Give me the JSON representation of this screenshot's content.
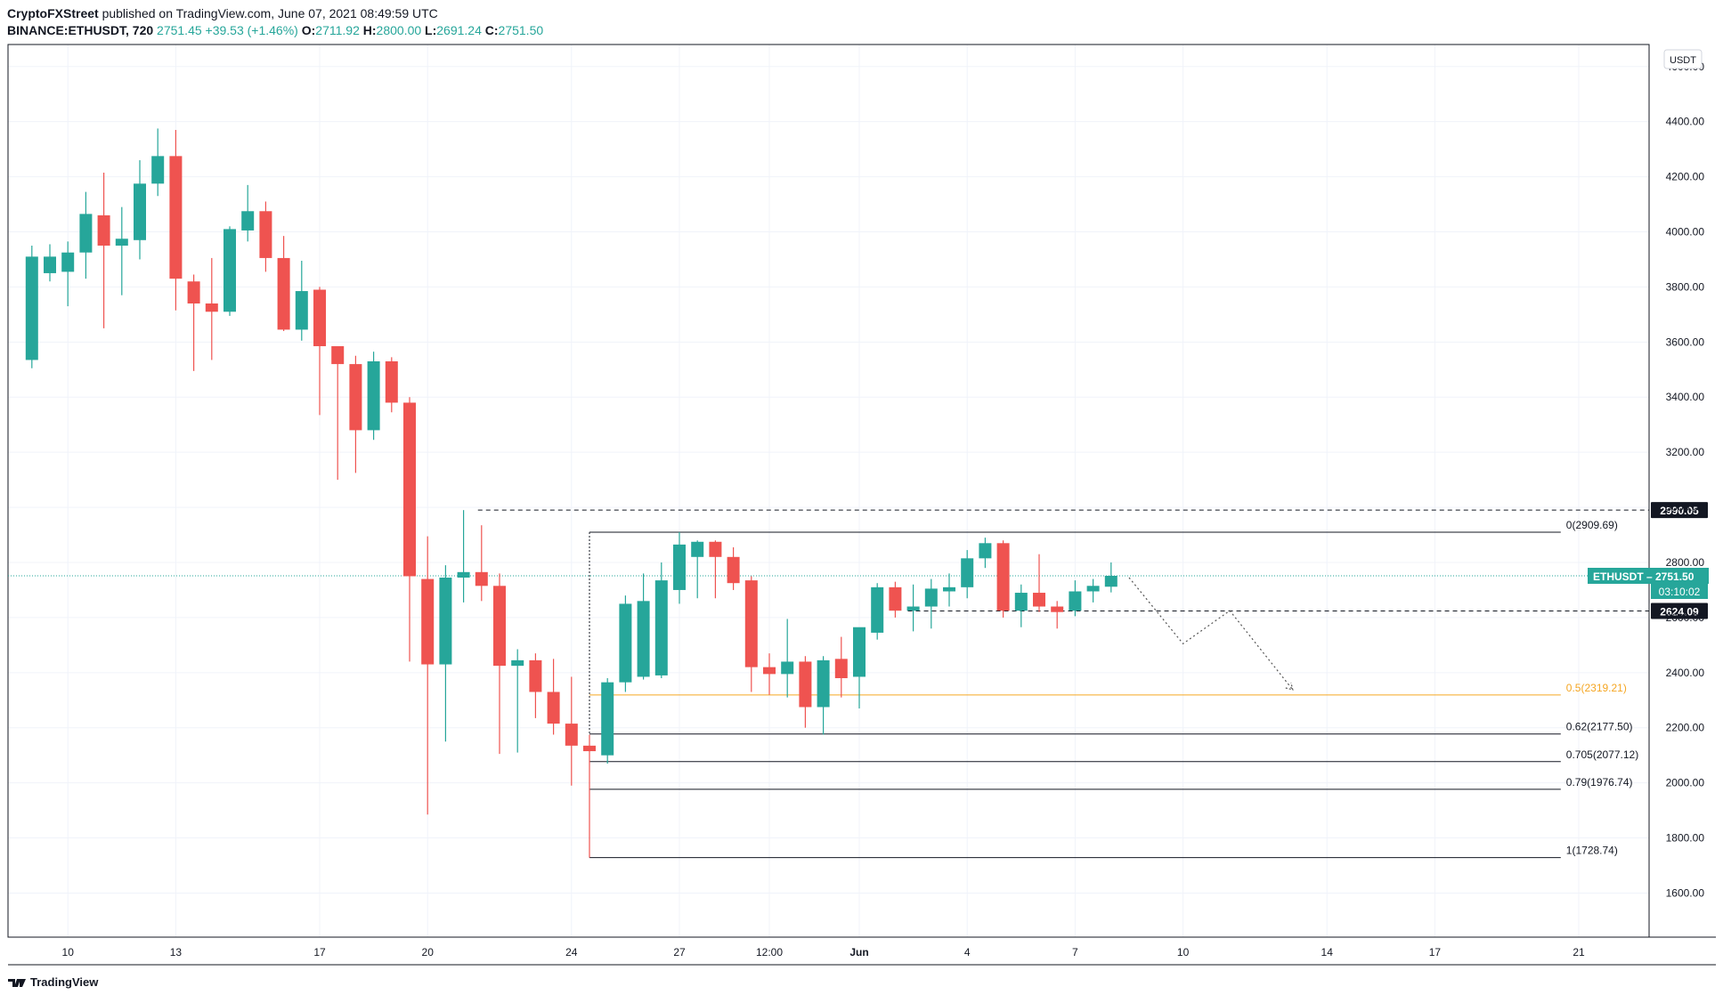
{
  "header": {
    "publisher": "CryptoFXStreet",
    "published_text": "published on TradingView.com, June 07, 2021 08:49:59 UTC",
    "symbol_line": "BINANCE:ETHUSDT, 720",
    "last": "2751.45",
    "change": "+39.53 (+1.46%)",
    "o_label": "O:",
    "o_value": "2711.92",
    "h_label": "H:",
    "h_value": "2800.00",
    "l_label": "L:",
    "l_value": "2691.24",
    "c_label": "C:",
    "c_value": "2751.50"
  },
  "footer": {
    "brand": "TradingView"
  },
  "colors": {
    "up": "#26a69a",
    "down": "#ef5350",
    "fib_half": "#f5a623",
    "grid": "#f0f3fa",
    "axis_text": "#131722"
  },
  "chart_data": {
    "type": "candlestick",
    "currency_label": "USDT",
    "x_axis_unit": "12-hour candles indexed from May 9 2021 12:00 UTC (index 0)",
    "ylim": [
      1440,
      4680
    ],
    "y_ticks": [
      1600,
      1800,
      2000,
      2200,
      2400,
      2600,
      2800,
      3000,
      3200,
      3400,
      3600,
      3800,
      4000,
      4200,
      4400,
      4600
    ],
    "y_tick_labels": [
      "1600.00",
      "1800.00",
      "2000.00",
      "2200.00",
      "2400.00",
      "2600.00",
      "2800.00",
      "3000.00",
      "3200.00",
      "3400.00",
      "3600.00",
      "3800.00",
      "4000.00",
      "4200.00",
      "4400.00",
      "4600.00"
    ],
    "x_ticks": [
      {
        "label": "10",
        "index": 2
      },
      {
        "label": "13",
        "index": 8
      },
      {
        "label": "17",
        "index": 16
      },
      {
        "label": "20",
        "index": 22
      },
      {
        "label": "24",
        "index": 30
      },
      {
        "label": "27",
        "index": 36
      },
      {
        "label": "12:00",
        "index": 41
      },
      {
        "label": "Jun",
        "index": 46
      },
      {
        "label": "4",
        "index": 52
      },
      {
        "label": "7",
        "index": 58
      },
      {
        "label": "10",
        "index": 64
      },
      {
        "label": "14",
        "index": 72
      },
      {
        "label": "17",
        "index": 78
      },
      {
        "label": "21",
        "index": 86
      }
    ],
    "candles": [
      {
        "o": 3535,
        "h": 3950,
        "l": 3505,
        "c": 3910
      },
      {
        "o": 3850,
        "h": 3955,
        "l": 3820,
        "c": 3910
      },
      {
        "o": 3855,
        "h": 3965,
        "l": 3730,
        "c": 3925
      },
      {
        "o": 3925,
        "h": 4145,
        "l": 3830,
        "c": 4065
      },
      {
        "o": 4060,
        "h": 4215,
        "l": 3650,
        "c": 3950
      },
      {
        "o": 3950,
        "h": 4090,
        "l": 3770,
        "c": 3975
      },
      {
        "o": 3970,
        "h": 4260,
        "l": 3900,
        "c": 4175
      },
      {
        "o": 4175,
        "h": 4375,
        "l": 4130,
        "c": 4275
      },
      {
        "o": 4275,
        "h": 4370,
        "l": 3715,
        "c": 3830
      },
      {
        "o": 3820,
        "h": 3845,
        "l": 3495,
        "c": 3740
      },
      {
        "o": 3740,
        "h": 3905,
        "l": 3535,
        "c": 3710
      },
      {
        "o": 3710,
        "h": 4020,
        "l": 3695,
        "c": 4010
      },
      {
        "o": 4005,
        "h": 4170,
        "l": 3965,
        "c": 4075
      },
      {
        "o": 4075,
        "h": 4110,
        "l": 3855,
        "c": 3905
      },
      {
        "o": 3905,
        "h": 3985,
        "l": 3640,
        "c": 3645
      },
      {
        "o": 3645,
        "h": 3895,
        "l": 3605,
        "c": 3785
      },
      {
        "o": 3790,
        "h": 3800,
        "l": 3335,
        "c": 3585
      },
      {
        "o": 3585,
        "h": 3585,
        "l": 3100,
        "c": 3520
      },
      {
        "o": 3520,
        "h": 3550,
        "l": 3125,
        "c": 3280
      },
      {
        "o": 3280,
        "h": 3565,
        "l": 3245,
        "c": 3530
      },
      {
        "o": 3530,
        "h": 3545,
        "l": 3345,
        "c": 3380
      },
      {
        "o": 3380,
        "h": 3400,
        "l": 2440,
        "c": 2750
      },
      {
        "o": 2740,
        "h": 2895,
        "l": 1885,
        "c": 2430
      },
      {
        "o": 2430,
        "h": 2790,
        "l": 2150,
        "c": 2745
      },
      {
        "o": 2745,
        "h": 2990,
        "l": 2655,
        "c": 2765
      },
      {
        "o": 2765,
        "h": 2935,
        "l": 2660,
        "c": 2715
      },
      {
        "o": 2715,
        "h": 2760,
        "l": 2105,
        "c": 2425
      },
      {
        "o": 2425,
        "h": 2485,
        "l": 2110,
        "c": 2445
      },
      {
        "o": 2445,
        "h": 2470,
        "l": 2235,
        "c": 2330
      },
      {
        "o": 2330,
        "h": 2450,
        "l": 2175,
        "c": 2215
      },
      {
        "o": 2215,
        "h": 2385,
        "l": 1990,
        "c": 2135
      },
      {
        "o": 2135,
        "h": 2175,
        "l": 1728.74,
        "c": 2115
      },
      {
        "o": 2100,
        "h": 2380,
        "l": 2070,
        "c": 2365
      },
      {
        "o": 2365,
        "h": 2680,
        "l": 2330,
        "c": 2650
      },
      {
        "o": 2385,
        "h": 2760,
        "l": 2375,
        "c": 2660
      },
      {
        "o": 2390,
        "h": 2800,
        "l": 2380,
        "c": 2735
      },
      {
        "o": 2700,
        "h": 2910,
        "l": 2650,
        "c": 2865
      },
      {
        "o": 2820,
        "h": 2880,
        "l": 2670,
        "c": 2875
      },
      {
        "o": 2875,
        "h": 2880,
        "l": 2670,
        "c": 2820
      },
      {
        "o": 2820,
        "h": 2855,
        "l": 2700,
        "c": 2725
      },
      {
        "o": 2735,
        "h": 2750,
        "l": 2330,
        "c": 2420
      },
      {
        "o": 2420,
        "h": 2470,
        "l": 2320,
        "c": 2395
      },
      {
        "o": 2395,
        "h": 2595,
        "l": 2310,
        "c": 2440
      },
      {
        "o": 2440,
        "h": 2460,
        "l": 2200,
        "c": 2275
      },
      {
        "o": 2275,
        "h": 2460,
        "l": 2175,
        "c": 2445
      },
      {
        "o": 2450,
        "h": 2530,
        "l": 2310,
        "c": 2380
      },
      {
        "o": 2385,
        "h": 2560,
        "l": 2270,
        "c": 2565
      },
      {
        "o": 2545,
        "h": 2725,
        "l": 2520,
        "c": 2710
      },
      {
        "o": 2710,
        "h": 2730,
        "l": 2600,
        "c": 2625
      },
      {
        "o": 2625,
        "h": 2720,
        "l": 2550,
        "c": 2640
      },
      {
        "o": 2640,
        "h": 2740,
        "l": 2560,
        "c": 2705
      },
      {
        "o": 2695,
        "h": 2760,
        "l": 2640,
        "c": 2710
      },
      {
        "o": 2710,
        "h": 2845,
        "l": 2670,
        "c": 2815
      },
      {
        "o": 2815,
        "h": 2890,
        "l": 2780,
        "c": 2870
      },
      {
        "o": 2870,
        "h": 2880,
        "l": 2600,
        "c": 2625
      },
      {
        "o": 2625,
        "h": 2720,
        "l": 2565,
        "c": 2690
      },
      {
        "o": 2690,
        "h": 2830,
        "l": 2620,
        "c": 2640
      },
      {
        "o": 2640,
        "h": 2660,
        "l": 2560,
        "c": 2620
      },
      {
        "o": 2625,
        "h": 2735,
        "l": 2605,
        "c": 2695
      },
      {
        "o": 2695,
        "h": 2740,
        "l": 2655,
        "c": 2715
      },
      {
        "o": 2711.92,
        "h": 2800,
        "l": 2691.24,
        "c": 2751.5
      }
    ],
    "horizontal_levels": [
      {
        "label": "2990.05",
        "value": 2990.05,
        "style": "dashed",
        "badge": true
      },
      {
        "label": "2624.09",
        "value": 2624.09,
        "style": "dashed",
        "badge": true
      }
    ],
    "fibonacci": {
      "start_index": 31,
      "end_index": 85,
      "levels": [
        {
          "label": "0(2909.69)",
          "value": 2909.69
        },
        {
          "label": "0.5(2319.21)",
          "value": 2319.21,
          "highlight": true
        },
        {
          "label": "0.62(2177.50)",
          "value": 2177.5
        },
        {
          "label": "0.705(2077.12)",
          "value": 2077.12
        },
        {
          "label": "0.79(1976.74)",
          "value": 1976.74
        },
        {
          "label": "1(1728.74)",
          "value": 1728.74
        }
      ]
    },
    "projection_path": [
      {
        "index": 61.0,
        "value": 2745
      },
      {
        "index": 64.0,
        "value": 2505
      },
      {
        "index": 66.6,
        "value": 2625
      },
      {
        "index": 70.1,
        "value": 2338
      }
    ],
    "price_tag": {
      "symbol": "ETHUSDT",
      "price": "2751.50",
      "countdown": "03:10:02",
      "value": 2751.5
    }
  }
}
